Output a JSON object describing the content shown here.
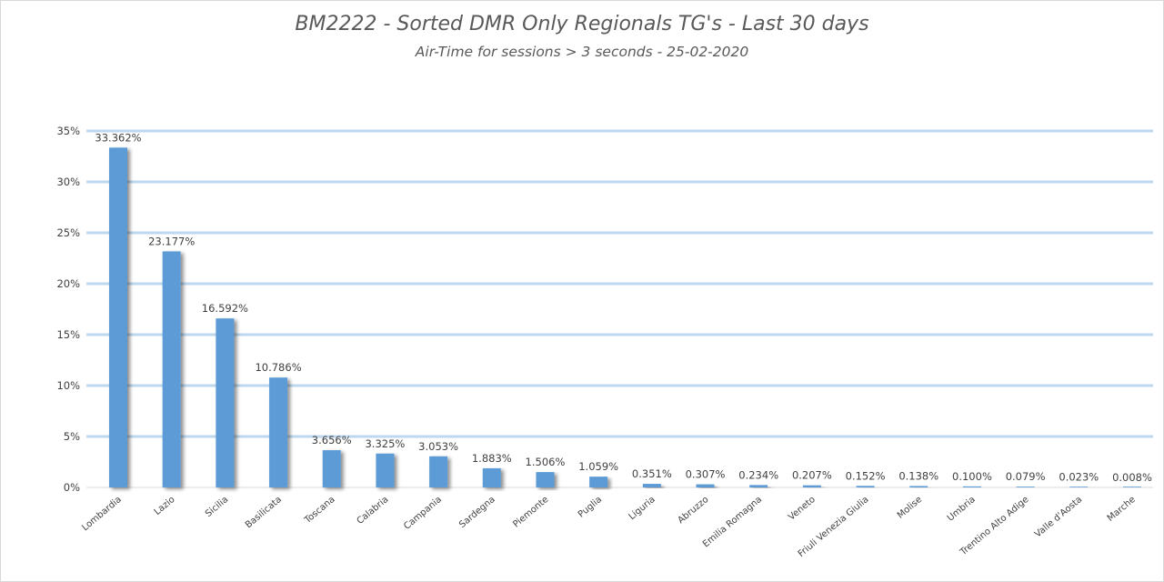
{
  "chart_data": {
    "type": "bar",
    "title": "BM2222 - Sorted DMR Only Regionals TG's - Last 30 days",
    "subtitle": "Air-Time for sessions > 3 seconds - 25-02-2020",
    "categories": [
      "Lombardia",
      "Lazio",
      "Sicilia",
      "Basilicata",
      "Toscana",
      "Calabria",
      "Campania",
      "Sardegna",
      "Piemonte",
      "Puglia",
      "Liguria",
      "Abruzzo",
      "Emilia Romagna",
      "Veneto",
      "Friuli Venezia Giulia",
      "Molise",
      "Umbria",
      "Trentino Alto Adige",
      "Valle d'Aosta",
      "Marche"
    ],
    "values": [
      33.362,
      23.177,
      16.592,
      10.786,
      3.656,
      3.325,
      3.053,
      1.883,
      1.506,
      1.059,
      0.351,
      0.307,
      0.234,
      0.207,
      0.152,
      0.138,
      0.1,
      0.079,
      0.023,
      0.008
    ],
    "data_labels": [
      "33.362%",
      "23.177%",
      "16.592%",
      "10.786%",
      "3.656%",
      "3.325%",
      "3.053%",
      "1.883%",
      "1.506%",
      "1.059%",
      "0.351%",
      "0.307%",
      "0.234%",
      "0.207%",
      "0.152%",
      "0.138%",
      "0.100%",
      "0.079%",
      "0.023%",
      "0.008%"
    ],
    "y_ticks": [
      0,
      5,
      10,
      15,
      20,
      25,
      30,
      35
    ],
    "y_tick_labels": [
      "0%",
      "5%",
      "10%",
      "15%",
      "20%",
      "25%",
      "30%",
      "35%"
    ],
    "ylim": [
      0,
      35
    ],
    "xlabel": "",
    "ylabel": "",
    "grid": true,
    "legend": "none",
    "bar_color": "#5b9bd5",
    "grid_color": "#bdd7ee"
  }
}
